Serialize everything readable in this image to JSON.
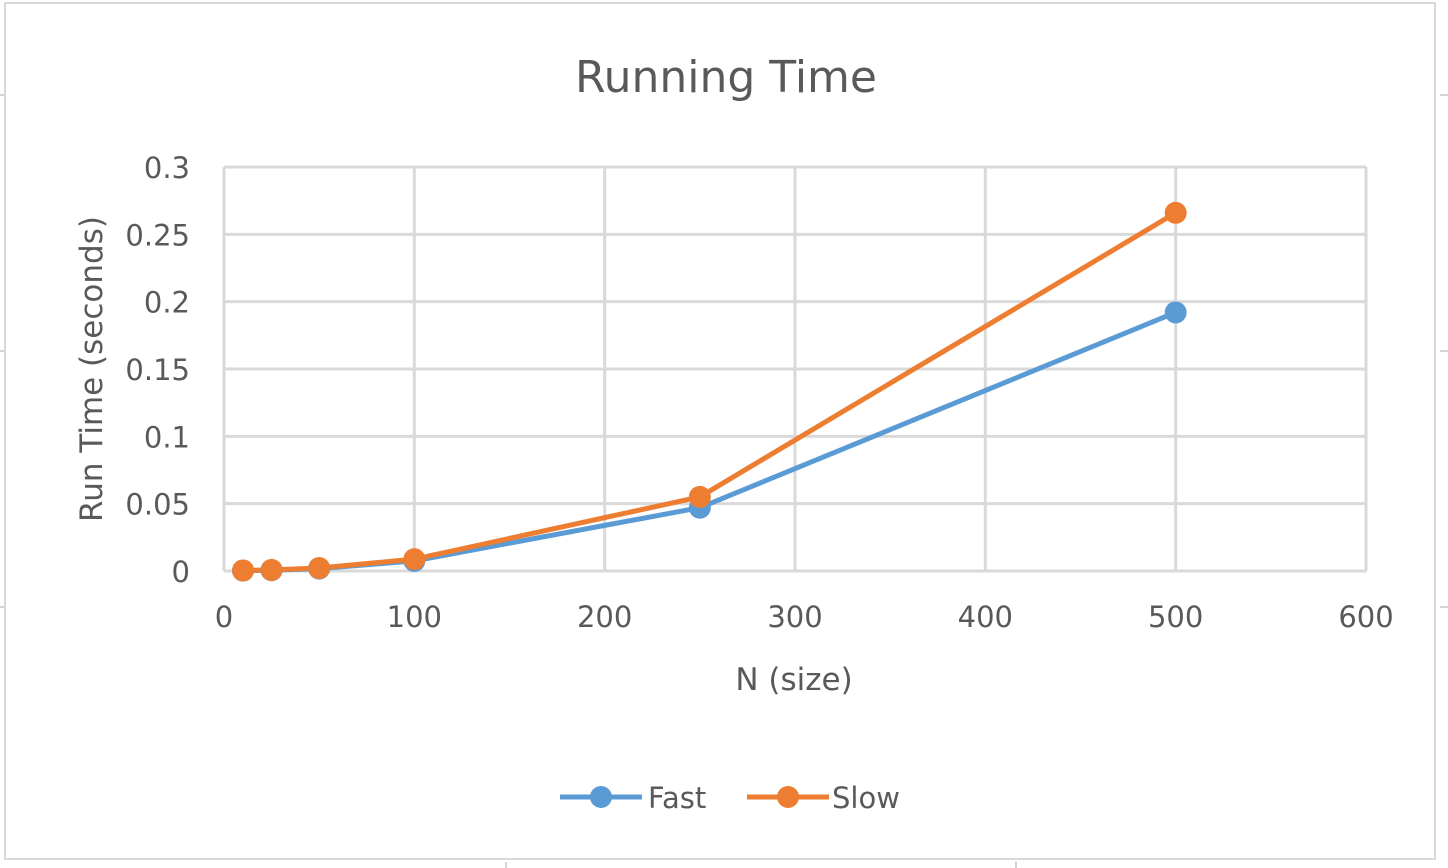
{
  "chart_data": {
    "type": "scatter",
    "title": "Running Time",
    "xlabel": "N (size)",
    "ylabel": "Run Time (seconds)",
    "xlim": [
      0,
      600
    ],
    "ylim": [
      0,
      0.3
    ],
    "x_ticks": [
      0,
      100,
      200,
      300,
      400,
      500,
      600
    ],
    "y_ticks": [
      0,
      0.05,
      0.1,
      0.15,
      0.2,
      0.25,
      0.3
    ],
    "x_tick_labels": [
      "0",
      "100",
      "200",
      "300",
      "400",
      "500",
      "600"
    ],
    "y_tick_labels": [
      "0",
      "0.05",
      "0.1",
      "0.15",
      "0.2",
      "0.25",
      "0.3"
    ],
    "grid": true,
    "legend_position": "bottom",
    "markers": true,
    "lines": true,
    "series": [
      {
        "name": "Fast",
        "color": "#5b9bd5",
        "x": [
          10,
          25,
          50,
          100,
          250,
          500
        ],
        "y": [
          0.0003,
          0.0006,
          0.0018,
          0.0075,
          0.047,
          0.192
        ]
      },
      {
        "name": "Slow",
        "color": "#ed7d31",
        "x": [
          10,
          25,
          50,
          100,
          250,
          500
        ],
        "y": [
          0.0004,
          0.0008,
          0.0022,
          0.0088,
          0.055,
          0.266
        ]
      }
    ]
  }
}
